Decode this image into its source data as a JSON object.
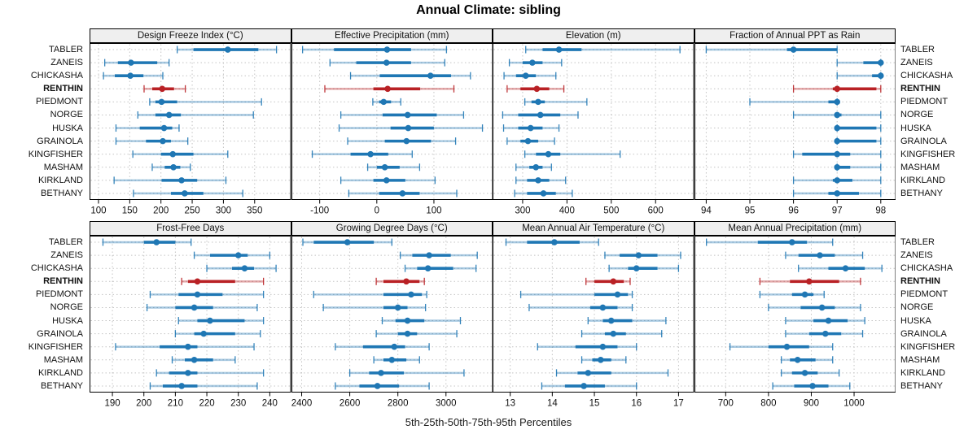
{
  "chart_data": {
    "type": "dot-whisker",
    "title": "Annual Climate: sibling",
    "caption": "5th-25th-50th-75th-95th Percentiles",
    "percentiles": [
      5,
      25,
      50,
      75,
      95
    ],
    "legend_position": "none",
    "grid": "dotted",
    "categories": [
      "TABLER",
      "ZANEIS",
      "CHICKASHA",
      "RENTHIN",
      "PIEDMONT",
      "NORGE",
      "HUSKA",
      "GRAINOLA",
      "KINGFISHER",
      "MASHAM",
      "KIRKLAND",
      "BETHANY"
    ],
    "highlight_category": "RENTHIN",
    "colors": {
      "series": "#1f77b4",
      "highlight": "#b92125",
      "header_bg": "#efefef",
      "grid": "#c4c4c4",
      "border": "#000000",
      "text": "#111111"
    },
    "panels": [
      {
        "title": "Design Freeze Index (°C)",
        "row": 0,
        "col": 0,
        "xlim": [
          87,
          407
        ],
        "ticks": [
          100,
          150,
          200,
          250,
          300,
          350
        ],
        "series": [
          [
            226,
            252,
            307,
            356,
            385
          ],
          [
            110,
            131,
            152,
            194,
            213
          ],
          [
            108,
            126,
            151,
            172,
            203
          ],
          [
            173,
            186,
            202,
            221,
            239
          ],
          [
            182,
            191,
            201,
            226,
            361
          ],
          [
            163,
            191,
            213,
            232,
            348
          ],
          [
            128,
            166,
            205,
            218,
            229
          ],
          [
            128,
            176,
            203,
            216,
            243
          ],
          [
            155,
            200,
            219,
            252,
            307
          ],
          [
            186,
            206,
            220,
            231,
            247
          ],
          [
            125,
            201,
            233,
            258,
            304
          ],
          [
            156,
            216,
            238,
            268,
            331
          ]
        ]
      },
      {
        "title": "Effective Precipitation (mm)",
        "row": 0,
        "col": 1,
        "xlim": [
          -148,
          202
        ],
        "ticks": [
          -100,
          0,
          100
        ],
        "series": [
          [
            -130,
            -75,
            18,
            60,
            122
          ],
          [
            -82,
            -36,
            17,
            60,
            119
          ],
          [
            -46,
            5,
            94,
            130,
            164
          ],
          [
            -91,
            -6,
            19,
            76,
            135
          ],
          [
            -7,
            4,
            12,
            25,
            42
          ],
          [
            -63,
            10,
            54,
            105,
            152
          ],
          [
            -66,
            24,
            55,
            100,
            185
          ],
          [
            -51,
            14,
            52,
            95,
            138
          ],
          [
            -113,
            -46,
            -11,
            20,
            62
          ],
          [
            -16,
            0,
            14,
            40,
            75
          ],
          [
            -63,
            -6,
            17,
            50,
            102
          ],
          [
            -49,
            4,
            45,
            75,
            140
          ]
        ]
      },
      {
        "title": "Elevation (m)",
        "row": 0,
        "col": 2,
        "xlim": [
          234,
          685
        ],
        "ticks": [
          300,
          400,
          500,
          600
        ],
        "series": [
          [
            307,
            345,
            382,
            433,
            655
          ],
          [
            270,
            300,
            322,
            345,
            388
          ],
          [
            258,
            285,
            307,
            330,
            375
          ],
          [
            265,
            295,
            332,
            360,
            393
          ],
          [
            305,
            320,
            335,
            350,
            445
          ],
          [
            255,
            290,
            340,
            385,
            425
          ],
          [
            257,
            290,
            318,
            345,
            382
          ],
          [
            265,
            295,
            312,
            335,
            372
          ],
          [
            305,
            330,
            358,
            385,
            520
          ],
          [
            285,
            315,
            330,
            345,
            365
          ],
          [
            285,
            310,
            335,
            360,
            397
          ],
          [
            282,
            310,
            347,
            375,
            412
          ]
        ]
      },
      {
        "title": "Fraction of Annual PPT as Rain",
        "row": 0,
        "col": 3,
        "xlim": [
          93.75,
          98.33
        ],
        "ticks": [
          94,
          95,
          96,
          97,
          98
        ],
        "series": [
          [
            94,
            95.85,
            96,
            97,
            97
          ],
          [
            97,
            97.6,
            98,
            98,
            98
          ],
          [
            97,
            97.8,
            98,
            98,
            98
          ],
          [
            96,
            96.9,
            97,
            97.9,
            98
          ],
          [
            95,
            96.8,
            97,
            97,
            97
          ],
          [
            96,
            96.95,
            97,
            97.1,
            98
          ],
          [
            97,
            97,
            97,
            97.9,
            98
          ],
          [
            97,
            97,
            97,
            97.9,
            98
          ],
          [
            96,
            96.2,
            97,
            97.3,
            98
          ],
          [
            97,
            97,
            97,
            97.3,
            98
          ],
          [
            96,
            96.9,
            97,
            97.35,
            98
          ],
          [
            96,
            96.8,
            97,
            97.5,
            98
          ]
        ]
      },
      {
        "title": "Frost-Free Days",
        "row": 1,
        "col": 0,
        "xlim": [
          183,
          246.5
        ],
        "ticks": [
          190,
          200,
          210,
          220,
          230,
          240
        ],
        "series": [
          [
            187,
            200,
            204,
            210,
            215
          ],
          [
            216,
            221,
            230,
            233,
            240
          ],
          [
            220,
            228,
            232,
            235,
            242
          ],
          [
            212,
            214,
            217,
            229,
            238
          ],
          [
            202,
            211,
            217,
            225,
            238
          ],
          [
            201,
            210,
            216,
            222,
            236
          ],
          [
            211,
            217,
            221,
            232,
            238
          ],
          [
            210,
            216,
            219,
            229,
            237
          ],
          [
            191,
            205,
            214,
            217,
            235
          ],
          [
            209,
            213,
            216,
            222,
            229
          ],
          [
            204,
            208,
            214,
            217,
            238
          ],
          [
            202,
            206,
            212,
            217,
            236
          ]
        ]
      },
      {
        "title": "Growing Degree Days (°C)",
        "row": 1,
        "col": 1,
        "xlim": [
          2361,
          3192
        ],
        "ticks": [
          2400,
          2600,
          2800,
          3000
        ],
        "series": [
          [
            2405,
            2450,
            2590,
            2700,
            2775
          ],
          [
            2810,
            2860,
            2930,
            3020,
            3130
          ],
          [
            2830,
            2880,
            2925,
            3030,
            3125
          ],
          [
            2710,
            2740,
            2835,
            2890,
            2910
          ],
          [
            2450,
            2740,
            2855,
            2900,
            2920
          ],
          [
            2490,
            2740,
            2800,
            2840,
            2915
          ],
          [
            2735,
            2790,
            2840,
            2910,
            3060
          ],
          [
            2710,
            2800,
            2840,
            2880,
            3045
          ],
          [
            2540,
            2655,
            2785,
            2830,
            2930
          ],
          [
            2700,
            2740,
            2775,
            2835,
            2890
          ],
          [
            2600,
            2680,
            2730,
            2825,
            3075
          ],
          [
            2540,
            2640,
            2715,
            2805,
            2930
          ]
        ]
      },
      {
        "title": "Mean Annual Air Temperature (°C)",
        "row": 1,
        "col": 2,
        "xlim": [
          12.6,
          17.35
        ],
        "ticks": [
          13,
          14,
          15,
          16,
          17
        ],
        "series": [
          [
            12.9,
            13.4,
            14.05,
            14.65,
            15.1
          ],
          [
            15.25,
            15.6,
            16.05,
            16.5,
            17.05
          ],
          [
            15.35,
            15.8,
            16.0,
            16.5,
            17.0
          ],
          [
            14.8,
            15.0,
            15.45,
            15.7,
            15.85
          ],
          [
            13.25,
            15.0,
            15.55,
            15.8,
            15.9
          ],
          [
            13.45,
            14.9,
            15.2,
            15.55,
            15.9
          ],
          [
            14.85,
            15.2,
            15.4,
            15.9,
            16.7
          ],
          [
            14.7,
            15.25,
            15.45,
            15.75,
            16.6
          ],
          [
            13.65,
            14.55,
            15.2,
            15.55,
            16.0
          ],
          [
            14.7,
            14.95,
            15.15,
            15.4,
            15.75
          ],
          [
            14.1,
            14.6,
            14.85,
            15.4,
            16.75
          ],
          [
            13.75,
            14.3,
            14.75,
            15.25,
            16.0
          ]
        ]
      },
      {
        "title": "Mean Annual Precipitation (mm)",
        "row": 1,
        "col": 3,
        "xlim": [
          629,
          1096
        ],
        "ticks": [
          700,
          800,
          900,
          1000
        ],
        "series": [
          [
            655,
            775,
            855,
            890,
            950
          ],
          [
            840,
            870,
            920,
            955,
            1020
          ],
          [
            870,
            940,
            980,
            1025,
            1065
          ],
          [
            780,
            850,
            895,
            965,
            1015
          ],
          [
            780,
            855,
            885,
            905,
            930
          ],
          [
            800,
            875,
            925,
            955,
            1015
          ],
          [
            840,
            905,
            940,
            985,
            1025
          ],
          [
            840,
            895,
            933,
            970,
            1020
          ],
          [
            710,
            800,
            843,
            895,
            950
          ],
          [
            830,
            850,
            868,
            910,
            950
          ],
          [
            830,
            855,
            885,
            915,
            965
          ],
          [
            810,
            860,
            903,
            940,
            990
          ]
        ]
      }
    ]
  }
}
